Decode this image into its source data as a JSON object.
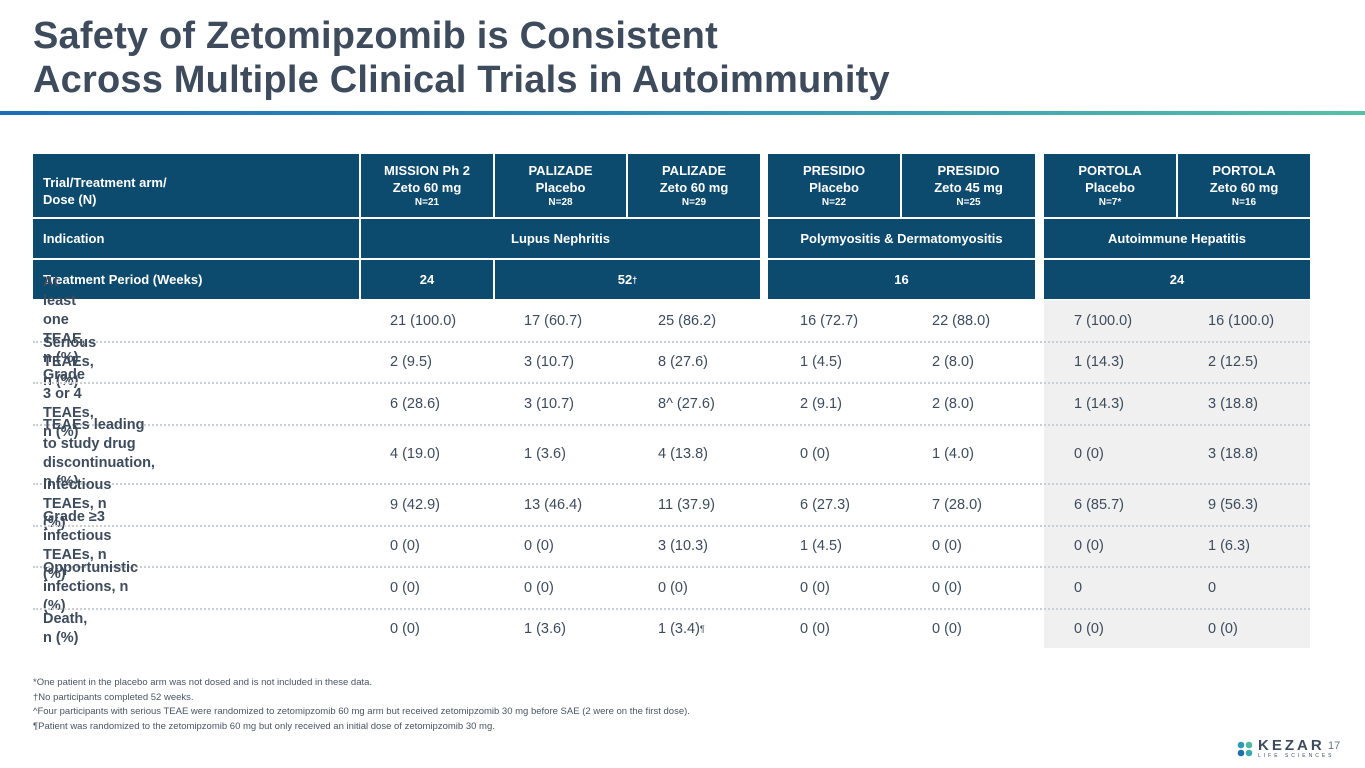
{
  "title": {
    "line1": "Safety of Zetomipzomib is Consistent",
    "line2": "Across Multiple Clinical Trials in Autoimmunity"
  },
  "table": {
    "corner_label_line1": "Trial/Treatment arm/",
    "corner_label_line2": "Dose (N)",
    "columns": [
      {
        "line1": "MISSION Ph 2",
        "line2": "Zeto 60 mg",
        "n": "N=21"
      },
      {
        "line1": "PALIZADE",
        "line2": "Placebo",
        "n": "N=28"
      },
      {
        "line1": "PALIZADE",
        "line2": "Zeto 60 mg",
        "n": "N=29"
      },
      {
        "line1": "PRESIDIO",
        "line2": "Placebo",
        "n": "N=22"
      },
      {
        "line1": "PRESIDIO",
        "line2": "Zeto 45 mg",
        "n": "N=25"
      },
      {
        "line1": "PORTOLA",
        "line2": "Placebo",
        "n": "N=7*"
      },
      {
        "line1": "PORTOLA",
        "line2": "Zeto 60 mg",
        "n": "N=16"
      }
    ],
    "indication": {
      "label": "Indication",
      "group1": "Lupus Nephritis",
      "group2": "Polymyositis & Dermatomyositis",
      "group3": "Autoimmune Hepatitis"
    },
    "treatment_period": {
      "label": "Treatment Period (Weeks)",
      "mission": "24",
      "palizade": "52",
      "palizade_mark": "†",
      "presidio": "16",
      "portola": "24"
    },
    "rows": [
      {
        "label": "At least one TEAE, n (%)",
        "values": [
          "21 (100.0)",
          "17 (60.7)",
          "25 (86.2)",
          "16 (72.7)",
          "22 (88.0)",
          "7 (100.0)",
          "16 (100.0)"
        ]
      },
      {
        "label": "Serious TEAEs, n (%)",
        "values": [
          "2 (9.5)",
          "3 (10.7)",
          "8 (27.6)",
          "1 (4.5)",
          "2 (8.0)",
          "1 (14.3)",
          "2 (12.5)"
        ]
      },
      {
        "label": "Grade 3 or 4 TEAEs, n (%)",
        "values": [
          "6 (28.6)",
          "3 (10.7)",
          "8^ (27.6)",
          "2 (9.1)",
          "2 (8.0)",
          "1 (14.3)",
          "3 (18.8)"
        ]
      },
      {
        "label_line1": "TEAEs leading to study drug",
        "label_line2": "discontinuation, n (%)",
        "values": [
          "4 (19.0)",
          "1 (3.6)",
          "4 (13.8)",
          "0 (0)",
          "1 (4.0)",
          "0 (0)",
          "3 (18.8)"
        ]
      },
      {
        "label": "Infectious TEAEs, n (%)",
        "values": [
          "9 (42.9)",
          "13 (46.4)",
          "11 (37.9)",
          "6 (27.3)",
          "7 (28.0)",
          "6 (85.7)",
          "9 (56.3)"
        ]
      },
      {
        "label": "Grade ≥3 infectious TEAEs, n (%)",
        "values": [
          "0 (0)",
          "0 (0)",
          "3 (10.3)",
          "1 (4.5)",
          "0 (0)",
          "0 (0)",
          "1 (6.3)"
        ]
      },
      {
        "label": "Opportunistic infections, n (%)",
        "values": [
          "0 (0)",
          "0 (0)",
          "0 (0)",
          "0 (0)",
          "0 (0)",
          "0",
          "0"
        ]
      },
      {
        "label": "Death, n (%)",
        "values": [
          "0 (0)",
          "1 (3.6)",
          "1 (3.4)",
          "0 (0)",
          "0 (0)",
          "0 (0)",
          "0 (0)"
        ],
        "death_mark": "¶"
      }
    ]
  },
  "footnotes": [
    "*One patient in the placebo arm was not dosed and is not included in these data.",
    "†No participants completed 52 weeks.",
    "^Four participants with serious TEAE were randomized to zetomipzomib 60 mg arm but received zetomipzomib 30 mg before SAE (2 were on the first dose).",
    "¶Patient was randomized to the zetomipzomib 60 mg but only received an initial dose of zetomipzomib 30 mg."
  ],
  "logo": {
    "word": "KEZAR",
    "sub": "LIFE SCIENCES"
  },
  "page_number": "17",
  "colors": {
    "header_bg": "#0c4a6e",
    "text": "#3d4b5c",
    "shade": "#f0f0f0"
  }
}
